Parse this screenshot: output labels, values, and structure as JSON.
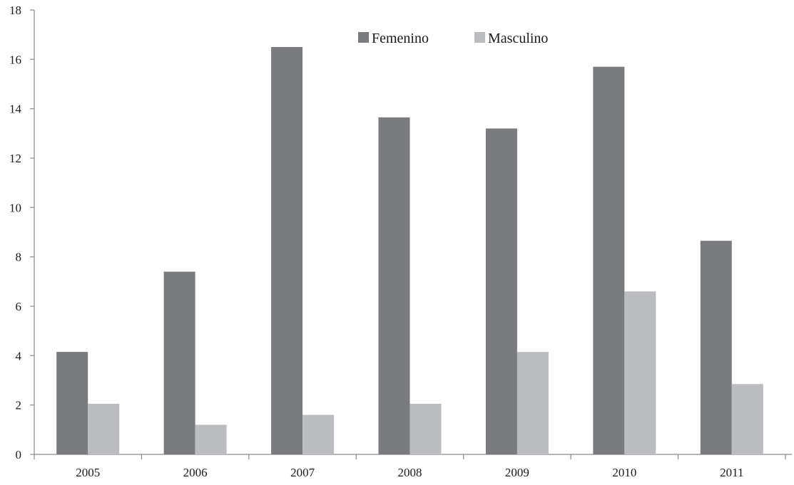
{
  "chart_data": {
    "type": "bar",
    "title": "",
    "xlabel": "",
    "ylabel": "",
    "categories": [
      "2005",
      "2006",
      "2007",
      "2008",
      "2009",
      "2010",
      "2011"
    ],
    "series": [
      {
        "name": "Femenino",
        "color": "#7a7b7e",
        "values": [
          4.15,
          7.4,
          16.5,
          13.65,
          13.2,
          15.7,
          8.65
        ]
      },
      {
        "name": "Masculino",
        "color": "#bbbcbf",
        "values": [
          2.05,
          1.2,
          1.6,
          2.05,
          4.15,
          6.6,
          2.85
        ]
      }
    ],
    "ylim": [
      0,
      18
    ],
    "yticks": [
      0,
      2,
      4,
      6,
      8,
      10,
      12,
      14,
      16,
      18
    ],
    "grid": false,
    "legend_position": "top-center",
    "axis_color": "#8a8a8a"
  }
}
